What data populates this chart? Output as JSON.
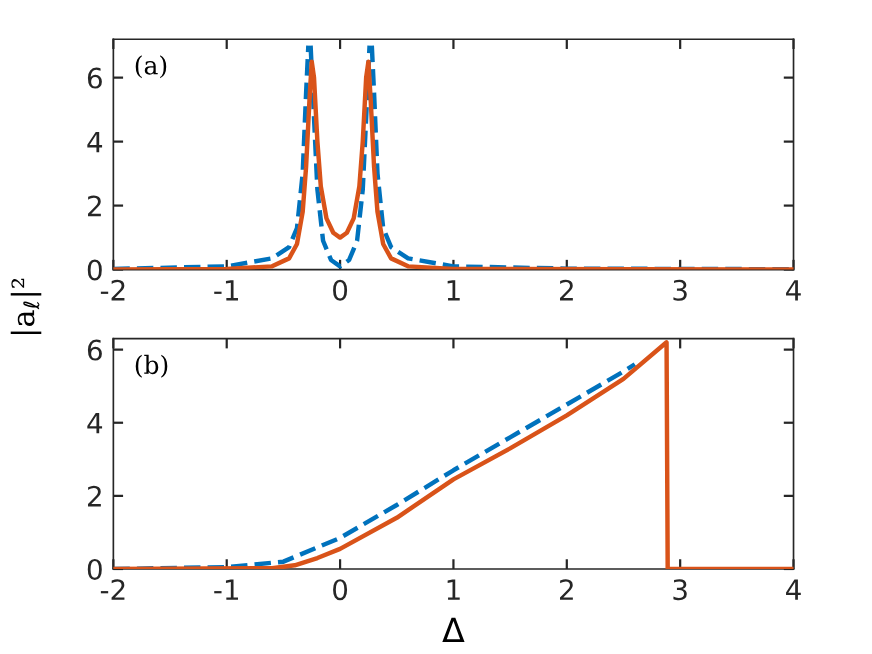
{
  "chart_data": [
    {
      "type": "line",
      "ylabel": "|a$_{ℓ}$|²",
      "annotations": [
        "(a)"
      ],
      "xlim": [
        -2,
        4
      ],
      "xticks": [
        -2,
        -1,
        0,
        1,
        2,
        3,
        4
      ],
      "ylim": [
        0,
        7.2
      ],
      "yticks": [
        0,
        2,
        4,
        6
      ],
      "tick_labels": "xy",
      "grid": false,
      "legend": false,
      "series": [
        {
          "color": "#0072bd",
          "line_style": "dashed",
          "x": [
            -2,
            -1,
            -0.6,
            -0.45,
            -0.38,
            -0.33,
            -0.3,
            -0.28,
            -0.27,
            -0.26,
            -0.24,
            -0.2,
            -0.15,
            -0.08,
            0,
            0.08,
            0.15,
            0.2,
            0.24,
            0.26,
            0.27,
            0.28,
            0.3,
            0.33,
            0.38,
            0.45,
            0.6,
            1,
            2,
            4
          ],
          "values": [
            0.02,
            0.1,
            0.35,
            0.7,
            1.3,
            3,
            5.5,
            7.0,
            null,
            7.0,
            5.5,
            2.5,
            0.9,
            0.3,
            0.1,
            0.3,
            0.9,
            2.5,
            5.5,
            7.0,
            null,
            7.0,
            5.5,
            3,
            1.3,
            0.7,
            0.35,
            0.1,
            0.03,
            0.01
          ]
        },
        {
          "color": "#d95319",
          "line_style": "solid",
          "x": [
            -2,
            -1,
            -0.6,
            -0.45,
            -0.38,
            -0.33,
            -0.3,
            -0.27,
            -0.25,
            -0.23,
            -0.2,
            -0.17,
            -0.12,
            -0.06,
            0,
            0.06,
            0.12,
            0.17,
            0.2,
            0.23,
            0.25,
            0.27,
            0.3,
            0.33,
            0.38,
            0.45,
            0.6,
            1,
            4
          ],
          "values": [
            0,
            0.02,
            0.1,
            0.35,
            0.8,
            1.8,
            3.2,
            5.3,
            6.5,
            6.0,
            4.0,
            2.6,
            1.6,
            1.15,
            1.0,
            1.15,
            1.6,
            2.6,
            4.0,
            6.0,
            6.5,
            5.3,
            3.2,
            1.8,
            0.8,
            0.35,
            0.1,
            0.02,
            0
          ]
        }
      ]
    },
    {
      "type": "line",
      "xlabel": "Δ",
      "annotations": [
        "(b)"
      ],
      "xlim": [
        -2,
        4
      ],
      "xticks": [
        -2,
        -1,
        0,
        1,
        2,
        3,
        4
      ],
      "ylim": [
        0,
        6.3
      ],
      "yticks": [
        0,
        2,
        4,
        6
      ],
      "grid": false,
      "legend": false,
      "series": [
        {
          "color": "#0072bd",
          "line_style": "dashed",
          "x": [
            -2,
            -1,
            -0.5,
            0,
            0.5,
            1,
            1.5,
            2,
            2.5,
            2.6
          ],
          "values": [
            0,
            0.05,
            0.2,
            0.85,
            1.75,
            2.7,
            3.6,
            4.5,
            5.4,
            5.6
          ]
        },
        {
          "color": "#d95319",
          "line_style": "solid",
          "x": [
            -2,
            -0.6,
            -0.4,
            -0.2,
            0,
            0.5,
            1,
            1.5,
            2,
            2.5,
            2.88,
            2.89,
            4
          ],
          "values": [
            0,
            0.02,
            0.1,
            0.3,
            0.55,
            1.4,
            2.45,
            3.3,
            4.2,
            5.2,
            6.2,
            0,
            0
          ]
        }
      ]
    }
  ]
}
